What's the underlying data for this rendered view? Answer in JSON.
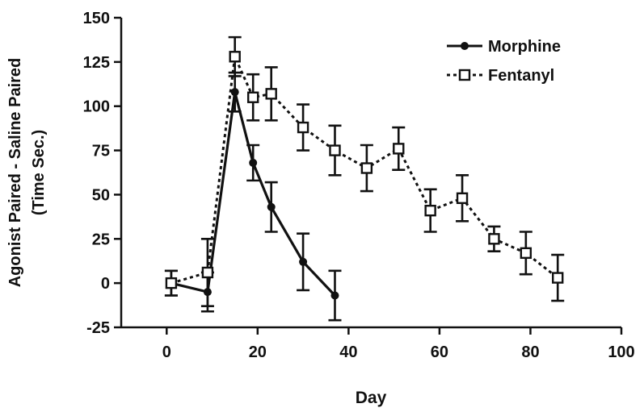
{
  "chart_data": {
    "type": "line",
    "title": "",
    "xlabel": "Day",
    "ylabel": "Agonist Paired - Saline Paired",
    "ylabel_line2": "(Time Sec.)",
    "xlim": [
      -10,
      100
    ],
    "ylim": [
      -25,
      150
    ],
    "xticks": [
      0,
      20,
      40,
      60,
      80,
      100
    ],
    "yticks": [
      -25,
      0,
      25,
      50,
      75,
      100,
      125,
      150
    ],
    "grid": false,
    "legend_position": "top-right",
    "series": [
      {
        "name": "Morphine",
        "marker": "circle",
        "line_style": "solid",
        "x": [
          1,
          9,
          15,
          19,
          23,
          30,
          37
        ],
        "y": [
          0,
          -5,
          108,
          68,
          43,
          12,
          -7
        ],
        "err": [
          7,
          11,
          11,
          10,
          14,
          16,
          14
        ]
      },
      {
        "name": "Fentanyl",
        "marker": "square",
        "line_style": "dashed",
        "x": [
          1,
          9,
          15,
          19,
          23,
          30,
          37,
          44,
          51,
          58,
          65,
          72,
          79,
          86
        ],
        "y": [
          0,
          6,
          128,
          105,
          107,
          88,
          75,
          65,
          76,
          41,
          48,
          25,
          17,
          3
        ],
        "err": [
          7,
          19,
          11,
          13,
          15,
          13,
          14,
          13,
          12,
          12,
          13,
          7,
          12,
          13
        ]
      }
    ],
    "colors": {
      "line": "#111111",
      "background": "#ffffff"
    }
  }
}
